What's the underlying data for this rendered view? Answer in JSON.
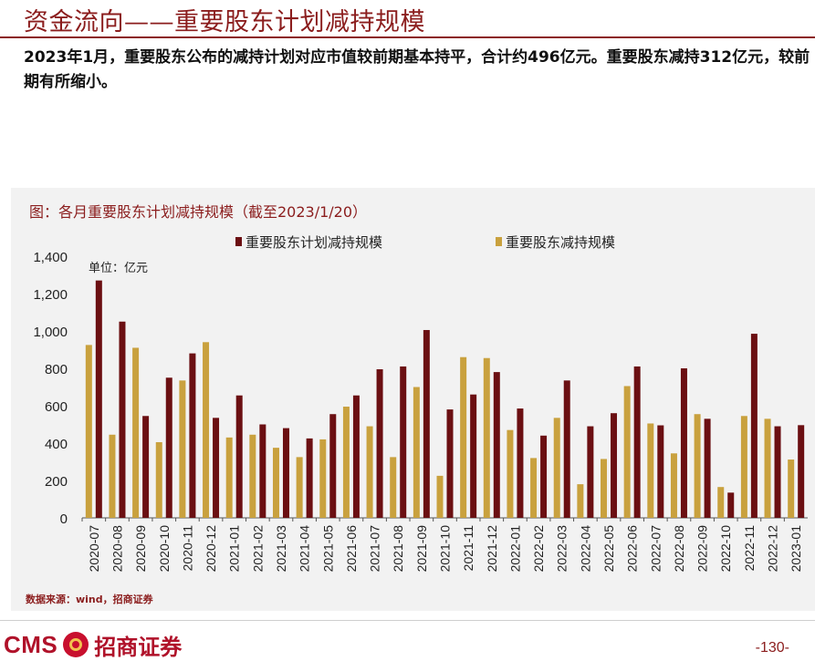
{
  "page": {
    "title": "资金流向——重要股东计划减持规模",
    "summary": "2023年1月，重要股东公布的减持计划对应市值较前期基本持平，合计约496亿元。重要股东减持312亿元，较前期有所缩小。",
    "caption": "图：各月重要股东计划减持规模（截至2023/1/20）",
    "source": "数据来源：wind，招商证券",
    "page_number": "-130-",
    "logo": {
      "latin": "CMS",
      "chinese": "招商证券",
      "icon": "cms-logo-icon"
    }
  },
  "chart_data": {
    "type": "bar",
    "unit_label": "单位：亿元",
    "ylim": [
      0,
      1400
    ],
    "yticks": [
      "0",
      "200",
      "400",
      "600",
      "800",
      "1,000",
      "1,200",
      "1,400"
    ],
    "ytick_values": [
      0,
      200,
      400,
      600,
      800,
      1000,
      1200,
      1400
    ],
    "grid": false,
    "legend_position": "top",
    "categories": [
      "2020-07",
      "2020-08",
      "2020-09",
      "2020-10",
      "2020-11",
      "2020-12",
      "2021-01",
      "2021-02",
      "2021-03",
      "2021-04",
      "2021-05",
      "2021-06",
      "2021-07",
      "2021-08",
      "2021-09",
      "2021-10",
      "2021-11",
      "2021-12",
      "2022-01",
      "2022-02",
      "2022-03",
      "2022-04",
      "2022-05",
      "2022-06",
      "2022-07",
      "2022-08",
      "2022-09",
      "2022-10",
      "2022-11",
      "2022-12",
      "2023-01"
    ],
    "series": [
      {
        "name": "重要股东计划减持规模",
        "color": "#6b0f12",
        "values": [
          1270,
          1050,
          545,
          750,
          880,
          535,
          655,
          500,
          480,
          425,
          555,
          655,
          795,
          810,
          1005,
          580,
          660,
          780,
          585,
          440,
          735,
          490,
          560,
          810,
          495,
          800,
          530,
          135,
          985,
          490,
          496
        ]
      },
      {
        "name": "重要股东减持规模",
        "color": "#c9a13e",
        "values": [
          925,
          445,
          910,
          405,
          735,
          940,
          430,
          445,
          375,
          325,
          420,
          595,
          490,
          325,
          700,
          225,
          860,
          855,
          470,
          320,
          535,
          180,
          315,
          705,
          505,
          345,
          555,
          165,
          545,
          530,
          312
        ]
      }
    ]
  }
}
